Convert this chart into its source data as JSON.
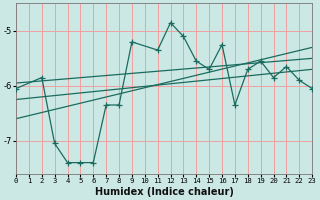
{
  "xlabel": "Humidex (Indice chaleur)",
  "bg_color": "#cce8e5",
  "grid_color": "#f0a0a0",
  "line_color": "#1a6b5e",
  "xlim": [
    0,
    23
  ],
  "ylim": [
    -7.6,
    -4.5
  ],
  "yticks": [
    -7,
    -6,
    -5
  ],
  "xticks": [
    0,
    1,
    2,
    3,
    4,
    5,
    6,
    7,
    8,
    9,
    10,
    11,
    12,
    13,
    14,
    15,
    16,
    17,
    18,
    19,
    20,
    21,
    22,
    23
  ],
  "main_line_x": [
    0,
    2,
    3,
    4,
    5,
    6,
    7,
    8,
    9,
    11,
    12,
    13,
    14,
    15,
    16,
    17,
    18,
    19,
    20,
    21,
    22,
    23
  ],
  "main_line_y": [
    -6.05,
    -5.85,
    -7.05,
    -7.4,
    -7.4,
    -7.4,
    -6.35,
    -6.35,
    -5.2,
    -5.35,
    -4.85,
    -5.1,
    -5.55,
    -5.7,
    -5.25,
    -6.35,
    -5.7,
    -5.55,
    -5.85,
    -5.65,
    -5.9,
    -6.05
  ],
  "reg_line1_x": [
    0,
    23
  ],
  "reg_line1_y": [
    -5.95,
    -5.5
  ],
  "reg_line2_x": [
    0,
    23
  ],
  "reg_line2_y": [
    -6.25,
    -5.7
  ],
  "reg_line3_x": [
    0,
    23
  ],
  "reg_line3_y": [
    -6.6,
    -5.3
  ]
}
